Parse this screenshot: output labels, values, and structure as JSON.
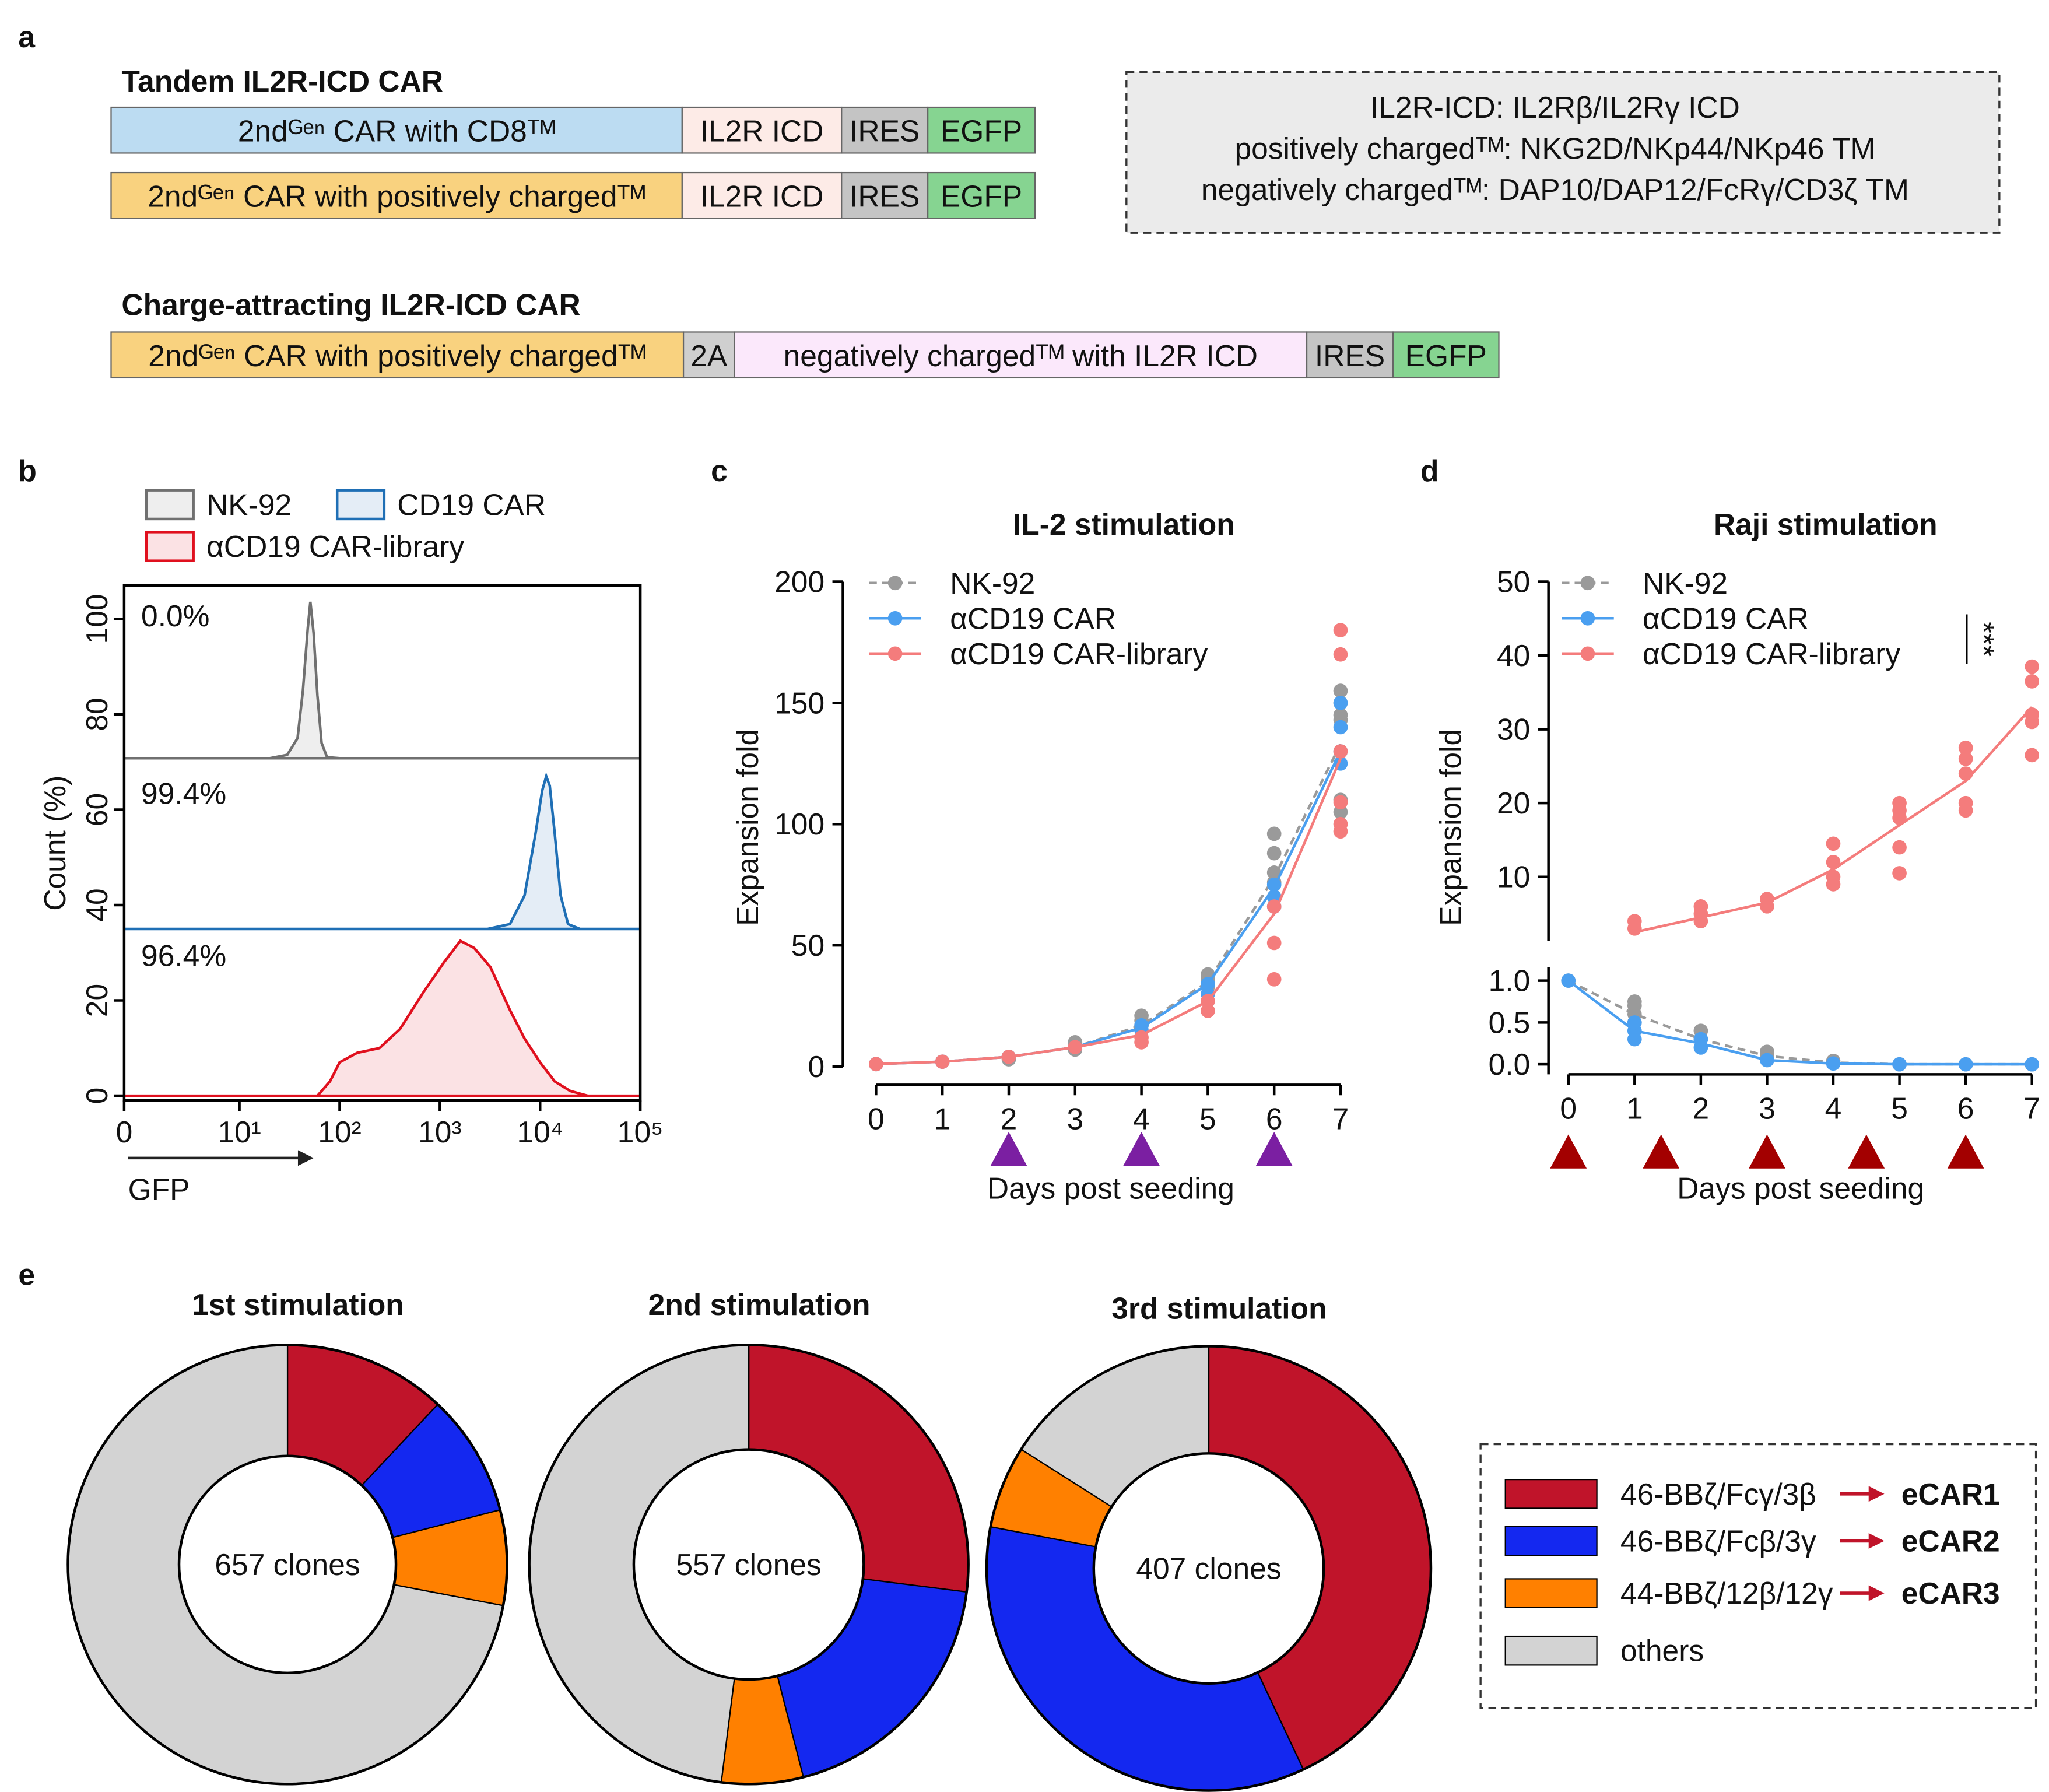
{
  "panel_labels": [
    "a",
    "b",
    "c",
    "d",
    "e"
  ],
  "panel_a": {
    "groups": [
      {
        "title": "Tandem IL2R-ICD CAR",
        "rows": [
          [
            "2ndᴳᵉⁿ CAR with CD8ᵀᴹ",
            "IL2R ICD",
            "IRES",
            "EGFP"
          ],
          [
            "2ndᴳᵉⁿ CAR with positively chargedᵀᴹ",
            "IL2R ICD",
            "IRES",
            "EGFP"
          ]
        ]
      },
      {
        "title": "Charge-attracting IL2R-ICD CAR",
        "rows": [
          [
            "2ndᴳᵉⁿ CAR with positively chargedᵀᴹ",
            "2A",
            "negatively chargedᵀᴹ with IL2R ICD",
            "IRES",
            "EGFP"
          ]
        ]
      }
    ],
    "note": [
      "IL2R-ICD: IL2Rβ/IL2Rγ ICD",
      "positively chargedᵀᴹ: NKG2D/NKp44/NKp46 TM",
      "negatively chargedᵀᴹ: DAP10/DAP12/FcRγ/CD3ζ TM"
    ]
  },
  "chart_data": [
    {
      "type": "area",
      "xlabel": "GFP",
      "ylabel": "Count  (%)",
      "xscale": "biexponential",
      "xlim": [
        0,
        100000
      ],
      "xticks": [
        0,
        {
          "value": 10,
          "label": "10¹"
        },
        {
          "value": 100,
          "label": "10²"
        },
        {
          "value": 1000,
          "label": "10³"
        },
        {
          "value": 10000,
          "label": "10⁴"
        },
        {
          "value": 100000,
          "label": "10⁵"
        }
      ],
      "ylim": [
        -1,
        107
      ],
      "yticks": [
        0,
        20,
        40,
        60,
        80,
        100
      ],
      "annotations": [
        "0.0%",
        "99.4%",
        "96.4%"
      ],
      "series": [
        {
          "name": "NK-92",
          "color": "#707070",
          "x": [
            0,
            20,
            30,
            38,
            43,
            48,
            51,
            55,
            60,
            66,
            75,
            100,
            100000
          ],
          "values": [
            70.8,
            70.8,
            71.5,
            75,
            85,
            98,
            103.6,
            97,
            84,
            74,
            71,
            70.8,
            70.8
          ]
        },
        {
          "name": "CD19 CAR",
          "color": "#1f6fb5",
          "x": [
            0,
            3000,
            5000,
            7000,
            9000,
            10500,
            11500,
            12500,
            14000,
            16000,
            19000,
            25000,
            100000
          ],
          "values": [
            35,
            35,
            36,
            42,
            55,
            64,
            67,
            65,
            55,
            42,
            36,
            35,
            35
          ]
        },
        {
          "name": "αCD19 CAR-library",
          "color": "#e0101e",
          "x": [
            0,
            60,
            80,
            100,
            150,
            250,
            400,
            700,
            1100,
            1600,
            2200,
            3200,
            5000,
            7000,
            10000,
            14000,
            20000,
            30000,
            100000
          ],
          "values": [
            0,
            0,
            3,
            7,
            9,
            10,
            14,
            22,
            28,
            32.5,
            31,
            27,
            18,
            12,
            7,
            3,
            1,
            0,
            0
          ]
        }
      ]
    },
    {
      "type": "line",
      "title": "IL-2 stimulation",
      "xlabel": "Days post seeding",
      "ylabel": "Expansion fold",
      "x": [
        0,
        1,
        2,
        3,
        4,
        5,
        6,
        7
      ],
      "xlim": [
        -0.5,
        7.2
      ],
      "xticks": [
        0,
        1,
        2,
        3,
        4,
        5,
        6,
        7
      ],
      "ylim": [
        0,
        200
      ],
      "yticks": [
        0,
        50,
        100,
        150,
        200
      ],
      "stimulation_days": [
        2,
        4,
        6
      ],
      "series": [
        {
          "name": "NK-92",
          "color": "#9a9a9a",
          "dashed": true,
          "values": [
            1,
            2,
            4,
            8,
            17,
            35,
            78,
            133
          ],
          "replicates": [
            [
              1
            ],
            [
              2
            ],
            [
              3,
              4
            ],
            [
              7,
              9,
              10
            ],
            [
              17,
              19,
              21
            ],
            [
              33,
              36,
              38
            ],
            [
              70,
              76,
              80,
              88,
              96
            ],
            [
              105,
              110,
              143,
              145,
              150,
              155
            ]
          ]
        },
        {
          "name": "αCD19 CAR",
          "color": "#4a9ff0",
          "values": [
            1,
            2,
            4,
            8,
            16,
            34,
            74,
            130
          ],
          "replicates": [
            [
              1
            ],
            [
              2
            ],
            [
              4
            ],
            [
              8
            ],
            [
              15,
              17
            ],
            [
              30,
              34
            ],
            [
              66,
              70,
              75
            ],
            [
              125,
              130,
              140,
              150
            ]
          ]
        },
        {
          "name": "αCD19 CAR-library",
          "color": "#f47c7c",
          "values": [
            1,
            2,
            4,
            8,
            13,
            27,
            63,
            127
          ],
          "replicates": [
            [
              1
            ],
            [
              2
            ],
            [
              4
            ],
            [
              8
            ],
            [
              10,
              12
            ],
            [
              23,
              27
            ],
            [
              36,
              51,
              66
            ],
            [
              97,
              100,
              109,
              130,
              170,
              180
            ]
          ]
        }
      ]
    },
    {
      "type": "line",
      "title": "Raji stimulation",
      "xlabel": "Days post seeding",
      "ylabel": "Expansion fold",
      "x": [
        0,
        1,
        2,
        3,
        4,
        5,
        6,
        7
      ],
      "xlim": [
        -0.3,
        7.1
      ],
      "xticks": [
        0,
        1,
        2,
        3,
        4,
        5,
        6,
        7
      ],
      "ylim_upper": [
        1.3,
        50
      ],
      "yticks_upper": [
        10,
        20,
        30,
        40,
        50
      ],
      "ylim_lower": [
        -0.12,
        1.16
      ],
      "yticks_lower": [
        {
          "value": 0,
          "label": "0.0"
        },
        0.5,
        {
          "value": 1,
          "label": "1.0"
        }
      ],
      "stimulation_days": [
        0,
        1.4,
        3,
        4.5,
        6
      ],
      "significance": "***",
      "series": [
        {
          "name": "NK-92",
          "color": "#9a9a9a",
          "dashed": true,
          "values": [
            1,
            0.6,
            0.3,
            0.1,
            0.02,
            0,
            0,
            0
          ],
          "replicates": [
            [
              1
            ],
            [
              0.5,
              0.6,
              0.7,
              0.75
            ],
            [
              0.3,
              0.4
            ],
            [
              0.1,
              0.15
            ],
            [
              0.02,
              0.04
            ],
            [
              0
            ],
            [
              0
            ],
            [
              0
            ]
          ]
        },
        {
          "name": "αCD19 CAR",
          "color": "#4a9ff0",
          "values": [
            1,
            0.4,
            0.25,
            0.05,
            0.01,
            0,
            0,
            0
          ],
          "replicates": [
            [
              1
            ],
            [
              0.3,
              0.4,
              0.5
            ],
            [
              0.2,
              0.3
            ],
            [
              0.05
            ],
            [
              0.01
            ],
            [
              0
            ],
            [
              0
            ],
            [
              0
            ]
          ]
        },
        {
          "name": "αCD19 CAR-library",
          "color": "#f47c7c",
          "values": [
            null,
            2.5,
            4.5,
            6.5,
            11,
            17,
            23,
            33
          ],
          "replicates": [
            [],
            [
              3,
              4
            ],
            [
              4,
              5,
              6
            ],
            [
              6,
              7
            ],
            [
              9,
              10,
              12,
              14.5
            ],
            [
              10.5,
              14,
              18,
              19,
              20
            ],
            [
              19,
              20,
              24,
              26,
              27.5
            ],
            [
              26.5,
              31,
              32,
              36.5,
              38.5
            ]
          ]
        }
      ]
    },
    {
      "type": "pie",
      "title": "1st stimulation",
      "center_label": "657 clones",
      "values": [
        12,
        9,
        7,
        72
      ]
    },
    {
      "type": "pie",
      "title": "2nd stimulation",
      "center_label": "557 clones",
      "values": [
        27,
        19,
        6,
        48
      ]
    },
    {
      "type": "pie",
      "title": "3rd stimulation",
      "center_label": "407 clones",
      "values": [
        43,
        35,
        6,
        16
      ]
    }
  ],
  "pie_legend": {
    "names": [
      "46-BBζ/Fcγ/3β",
      "46-BBζ/Fcβ/3γ",
      "44-BBζ/12β/12γ",
      "others"
    ],
    "colors": [
      "#c0142a",
      "#1428f0",
      "#ff8000",
      "#d3d3d3"
    ],
    "targets": [
      "eCAR1",
      "eCAR2",
      "eCAR3"
    ]
  }
}
